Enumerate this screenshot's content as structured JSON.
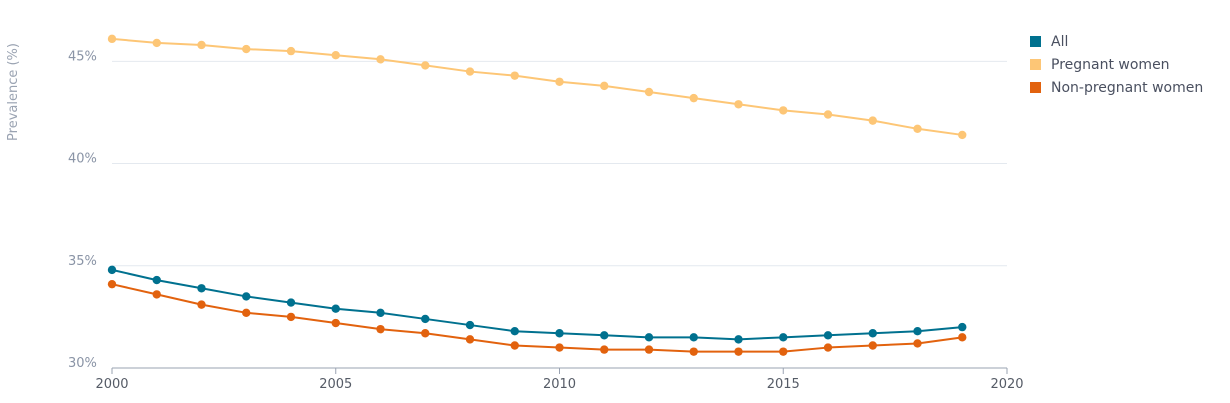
{
  "chart_data": {
    "type": "line",
    "ylabel": "Prevalence (%)",
    "xlabel": "",
    "xlim": [
      2000,
      2020
    ],
    "ylim": [
      30,
      48
    ],
    "x_ticks": [
      2000,
      2005,
      2010,
      2015,
      2020
    ],
    "y_ticks": [
      30,
      35,
      40,
      45
    ],
    "y_tick_labels": [
      "30%",
      "35%",
      "40%",
      "45%"
    ],
    "grid": "horizontal",
    "legend": "top-right",
    "x": [
      2000,
      2001,
      2002,
      2003,
      2004,
      2005,
      2006,
      2007,
      2008,
      2009,
      2010,
      2011,
      2012,
      2013,
      2014,
      2015,
      2016,
      2017,
      2018,
      2019
    ],
    "series": [
      {
        "name": "All",
        "color": "#00718f",
        "values": [
          34.8,
          34.3,
          33.9,
          33.5,
          33.2,
          32.9,
          32.7,
          32.4,
          32.1,
          31.8,
          31.7,
          31.6,
          31.5,
          31.5,
          31.4,
          31.5,
          31.6,
          31.7,
          31.8,
          32.0
        ]
      },
      {
        "name": "Pregnant women",
        "color": "#fdc676",
        "values": [
          46.1,
          45.9,
          45.8,
          45.6,
          45.5,
          45.3,
          45.1,
          44.8,
          44.5,
          44.3,
          44.0,
          43.8,
          43.5,
          43.2,
          42.9,
          42.6,
          42.4,
          42.1,
          41.7,
          41.4
        ]
      },
      {
        "name": "Non-pregnant women",
        "color": "#e2620e",
        "values": [
          34.1,
          33.6,
          33.1,
          32.7,
          32.5,
          32.2,
          31.9,
          31.7,
          31.4,
          31.1,
          31.0,
          30.9,
          30.9,
          30.8,
          30.8,
          30.8,
          31.0,
          31.1,
          31.2,
          31.5
        ]
      }
    ]
  }
}
